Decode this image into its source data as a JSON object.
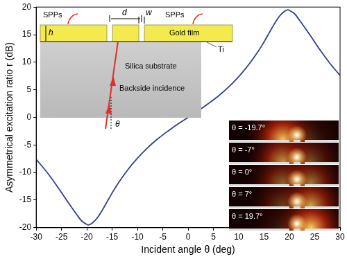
{
  "chart_data": {
    "type": "line",
    "x_label": "Incident angle θ (deg)",
    "y_label": "Asymmetrical excitation ratio r (dB)",
    "x": [
      -30,
      -28,
      -26,
      -24,
      -22,
      -21,
      -20,
      -19.7,
      -19,
      -18,
      -17,
      -16,
      -15,
      -14,
      -12,
      -10,
      -8,
      -6,
      -4,
      -2,
      0,
      2,
      4,
      6,
      8,
      10,
      12,
      14,
      15,
      16,
      17,
      18,
      19,
      19.7,
      20,
      21,
      22,
      24,
      26,
      28,
      30
    ],
    "values": [
      -7.6,
      -9.8,
      -12.3,
      -15.0,
      -17.6,
      -18.8,
      -19.4,
      -19.5,
      -19.2,
      -18.3,
      -16.9,
      -15.3,
      -13.7,
      -12.2,
      -9.6,
      -7.4,
      -5.5,
      -3.9,
      -2.5,
      -1.2,
      0,
      1.2,
      2.5,
      3.9,
      5.5,
      7.4,
      9.6,
      12.2,
      13.7,
      15.3,
      16.9,
      18.3,
      19.2,
      19.5,
      19.4,
      18.8,
      17.6,
      15.0,
      12.3,
      9.8,
      7.6
    ],
    "color": "#2f3c8f",
    "xlim": [
      -30,
      30
    ],
    "xticks": [
      -30,
      -25,
      -20,
      -15,
      -10,
      -5,
      0,
      5,
      10,
      15,
      20,
      25,
      30
    ],
    "ylim": [
      -20,
      20
    ],
    "yticks": [
      -20,
      -15,
      -10,
      -5,
      0,
      5,
      10,
      15,
      20
    ],
    "grid": false,
    "annotations": {
      "schematic": {
        "spp_left": "SPPs",
        "spp_right": "SPPs",
        "d": "d",
        "w": "w",
        "h": "h",
        "film": "Gold film",
        "adhesion": "Ti",
        "substrate": "Silica substrate",
        "incidence": "Backside incidence",
        "angle": "θ"
      },
      "field_maps": [
        "θ = -19.7°",
        "θ = -7°",
        "θ = 0°",
        "θ = 7°",
        "θ = 19.7°"
      ]
    }
  }
}
